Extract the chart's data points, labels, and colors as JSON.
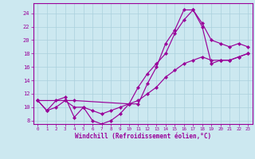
{
  "xlabel": "Windchill (Refroidissement éolien,°C)",
  "bg_color": "#cce8f0",
  "line_color": "#990099",
  "grid_color": "#aad0dd",
  "xlim": [
    -0.5,
    23.5
  ],
  "ylim": [
    7.5,
    25.5
  ],
  "xticks": [
    0,
    1,
    2,
    3,
    4,
    5,
    6,
    7,
    8,
    9,
    10,
    11,
    12,
    13,
    14,
    15,
    16,
    17,
    18,
    19,
    20,
    21,
    22,
    23
  ],
  "yticks": [
    8,
    10,
    12,
    14,
    16,
    18,
    20,
    22,
    24
  ],
  "line1_x": [
    0,
    1,
    2,
    3,
    4,
    5,
    6,
    7,
    8,
    9,
    10,
    11,
    12,
    13,
    14,
    15,
    16,
    17,
    18,
    19,
    20,
    21,
    22,
    23
  ],
  "line1_y": [
    11,
    9.5,
    11,
    11.5,
    8.5,
    10,
    8,
    7.5,
    8,
    9,
    10.5,
    10.5,
    13.5,
    16,
    19.5,
    21.5,
    24.5,
    24.5,
    22.5,
    20,
    19.5,
    19,
    19.5,
    19
  ],
  "line2_x": [
    0,
    3,
    4,
    10,
    11,
    12,
    13,
    14,
    15,
    16,
    17,
    18,
    19,
    20,
    21,
    22,
    23
  ],
  "line2_y": [
    11,
    11,
    11,
    10.5,
    13,
    15,
    16.5,
    18,
    21,
    23,
    24.5,
    22,
    16.5,
    17,
    17,
    17.5,
    18
  ],
  "line3_x": [
    0,
    1,
    2,
    3,
    4,
    5,
    6,
    7,
    8,
    9,
    10,
    11,
    12,
    13,
    14,
    15,
    16,
    17,
    18,
    19,
    20,
    21,
    22,
    23
  ],
  "line3_y": [
    11,
    9.5,
    10,
    11,
    10,
    10,
    9.5,
    9,
    9.5,
    10,
    10.5,
    11,
    12,
    13,
    14.5,
    15.5,
    16.5,
    17,
    17.5,
    17,
    17,
    17,
    17.5,
    18
  ]
}
